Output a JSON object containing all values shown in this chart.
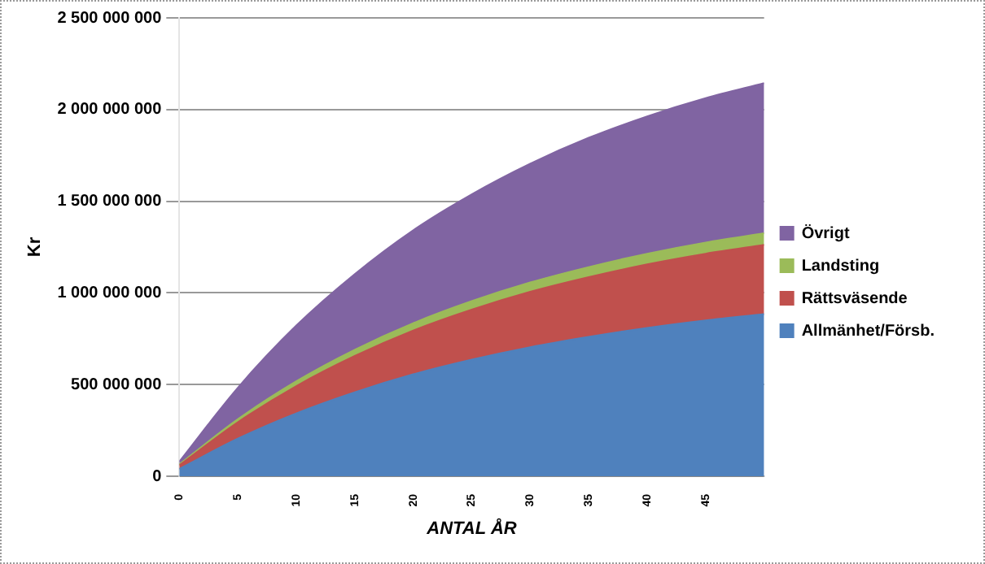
{
  "chart_data": {
    "type": "area",
    "stacked": true,
    "xlabel": "ANTAL ÅR",
    "ylabel": "Kr",
    "x": [
      0,
      5,
      10,
      15,
      20,
      25,
      30,
      35,
      40,
      45,
      50
    ],
    "xlim": [
      0,
      50
    ],
    "xticks": [
      0,
      5,
      10,
      15,
      20,
      25,
      30,
      35,
      40,
      45
    ],
    "ylim": [
      0,
      2500000000
    ],
    "yticks": [
      {
        "value": 0,
        "label": "0"
      },
      {
        "value": 500000000,
        "label": "500 000 000"
      },
      {
        "value": 1000000000,
        "label": "1 000 000 000"
      },
      {
        "value": 1500000000,
        "label": "1 500 000 000"
      },
      {
        "value": 2000000000,
        "label": "2 000 000 000"
      },
      {
        "value": 2500000000,
        "label": "2 500 000 000"
      }
    ],
    "grid": "y",
    "legend": "right",
    "marker": "none",
    "series": [
      {
        "name": "Allmänhet/Försb.",
        "color": "#4f81bd",
        "values": [
          40000000,
          205000000,
          343000000,
          458000000,
          556000000,
          636000000,
          704000000,
          760000000,
          809000000,
          850000000,
          884000000
        ]
      },
      {
        "name": "Rättsväsende",
        "color": "#c0504d",
        "values": [
          20000000,
          90000000,
          149000000,
          198000000,
          239000000,
          273000000,
          302000000,
          326000000,
          347000000,
          364000000,
          378000000
        ]
      },
      {
        "name": "Landsting",
        "color": "#9bbb59",
        "values": [
          5000000,
          16000000,
          26000000,
          34000000,
          40000000,
          46000000,
          51000000,
          55000000,
          58000000,
          61000000,
          63000000
        ]
      },
      {
        "name": "Övrigt",
        "color": "#8064a2",
        "values": [
          15000000,
          172000000,
          304000000,
          413000000,
          507000000,
          583000000,
          648000000,
          705000000,
          749000000,
          787000000,
          819000000
        ]
      }
    ]
  }
}
